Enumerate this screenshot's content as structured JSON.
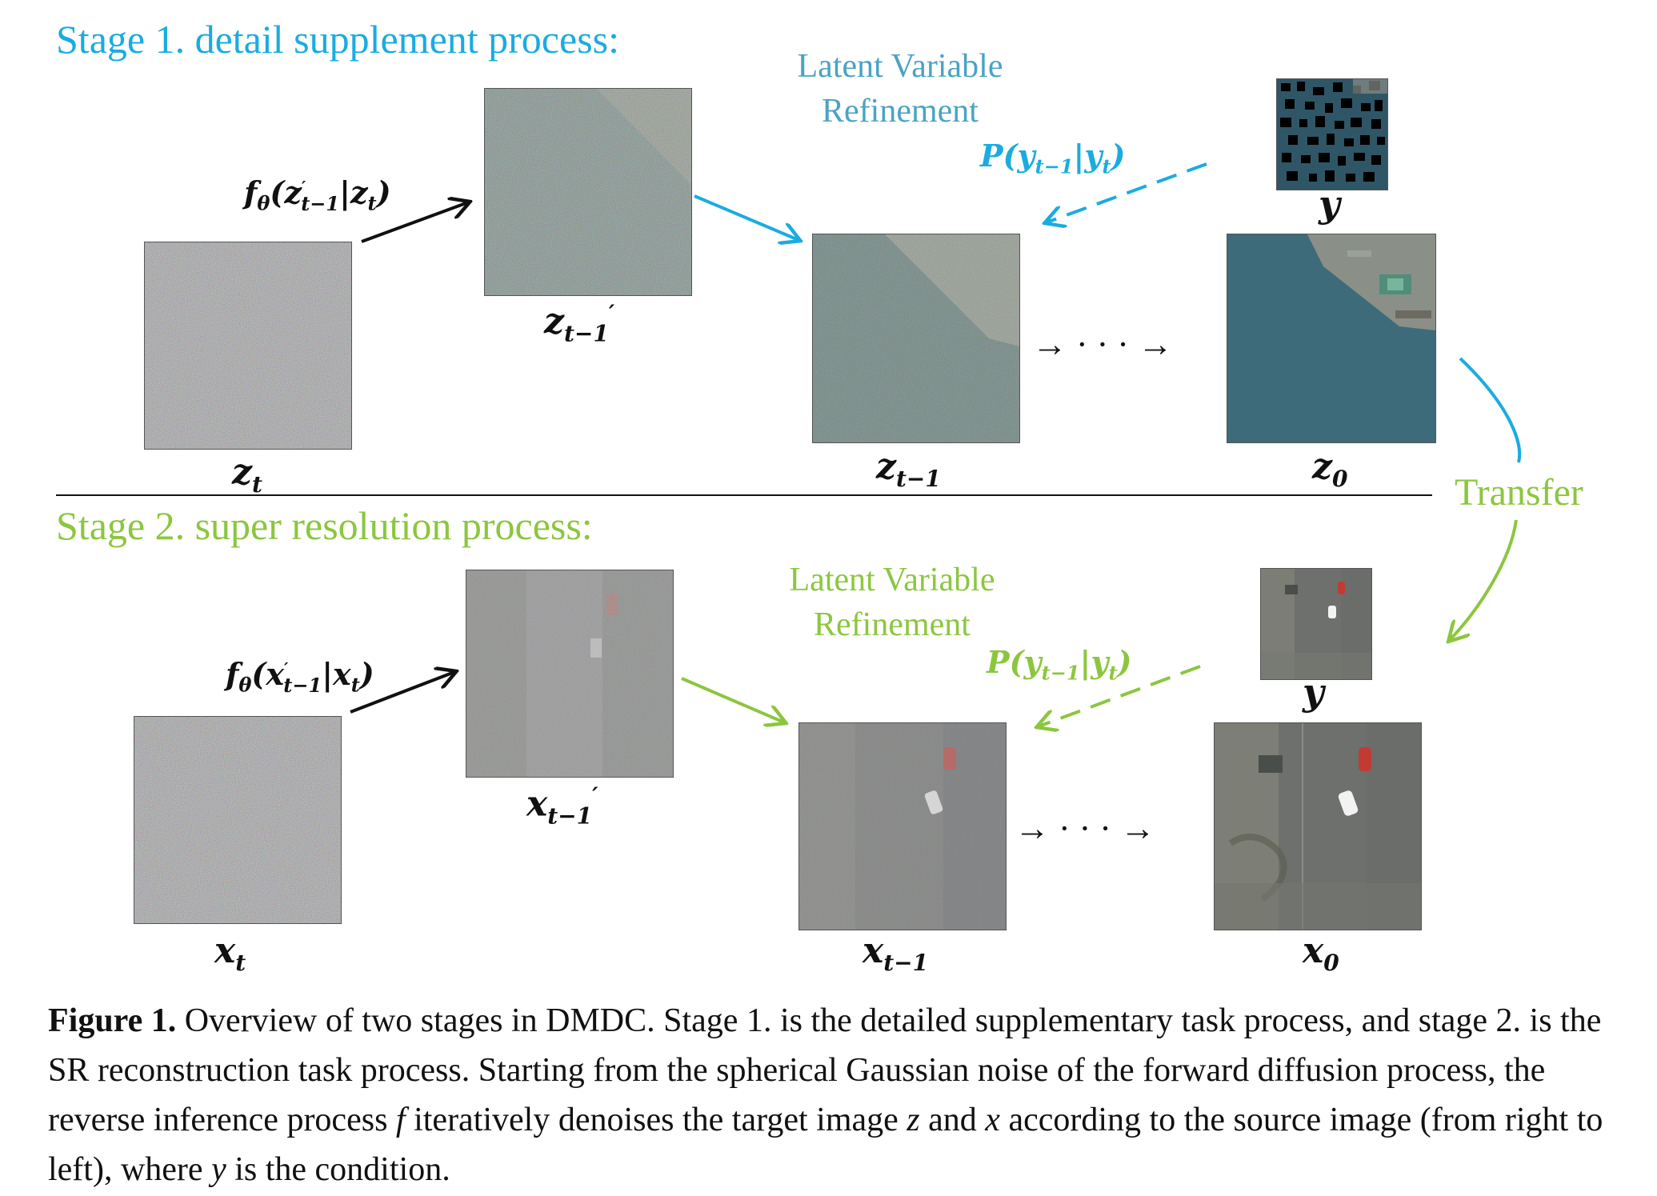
{
  "colors": {
    "stage1": "#1AACE0",
    "stage2": "#8CC63F",
    "text": "#111111",
    "water": "#3E6B7A"
  },
  "stage1": {
    "heading": "Stage 1. detail supplement process:",
    "lvr_line1": "Latent Variable",
    "lvr_line2": "Refinement",
    "prob_label": "P(y",
    "prob_sub1": "t−1",
    "prob_mid": "|y",
    "prob_sub2": "t",
    "prob_end": ")",
    "f_label_pre": "f",
    "f_label_theta": "θ",
    "f_label_body": "(z",
    "f_label_prime": "′",
    "f_label_sub": "t−1",
    "f_label_cond": "|z",
    "f_label_sub2": "t",
    "f_label_end": ")",
    "label_zt": "z",
    "label_zt_sub": "t",
    "label_zt1p": "z",
    "label_zt1p_sub": "t−1",
    "label_zt1p_prime": "′",
    "label_zt1": "z",
    "label_zt1_sub": "t−1",
    "label_z0": "z",
    "label_z0_sub": "0",
    "label_y": "y",
    "ellipsis": "→ · · · →"
  },
  "stage2": {
    "heading": "Stage 2. super resolution process:",
    "lvr_line1": "Latent Variable",
    "lvr_line2": "Refinement",
    "prob_label": "P(y",
    "prob_sub1": "t−1",
    "prob_mid": "|y",
    "prob_sub2": "t",
    "prob_end": ")",
    "f_label_pre": "f",
    "f_label_theta": "θ",
    "f_label_body": "(x",
    "f_label_prime": "′",
    "f_label_sub": "t−1",
    "f_label_cond": "|x",
    "f_label_sub2": "t",
    "f_label_end": ")",
    "label_xt": "x",
    "label_xt_sub": "t",
    "label_xt1p": "x",
    "label_xt1p_sub": "t−1",
    "label_xt1p_prime": "′",
    "label_xt1": "x",
    "label_xt1_sub": "t−1",
    "label_x0": "x",
    "label_x0_sub": "0",
    "label_y": "y",
    "ellipsis": "→ · · · →"
  },
  "transfer_label": "Transfer",
  "caption": {
    "figure_label": "Figure 1.",
    "text_1": " Overview of two stages in DMDC. Stage 1. is the detailed supplementary task process, and stage 2. is the SR reconstruction task process. Starting from the spherical Gaussian noise of the forward diffusion process, the reverse inference process ",
    "var_f": "f",
    "text_2": " iteratively denoises the target image ",
    "var_z": "z",
    "text_3": " and ",
    "var_x": "x",
    "text_4": " according to the source image (from right to left), where ",
    "var_y": "y",
    "text_5": " is the condition."
  }
}
